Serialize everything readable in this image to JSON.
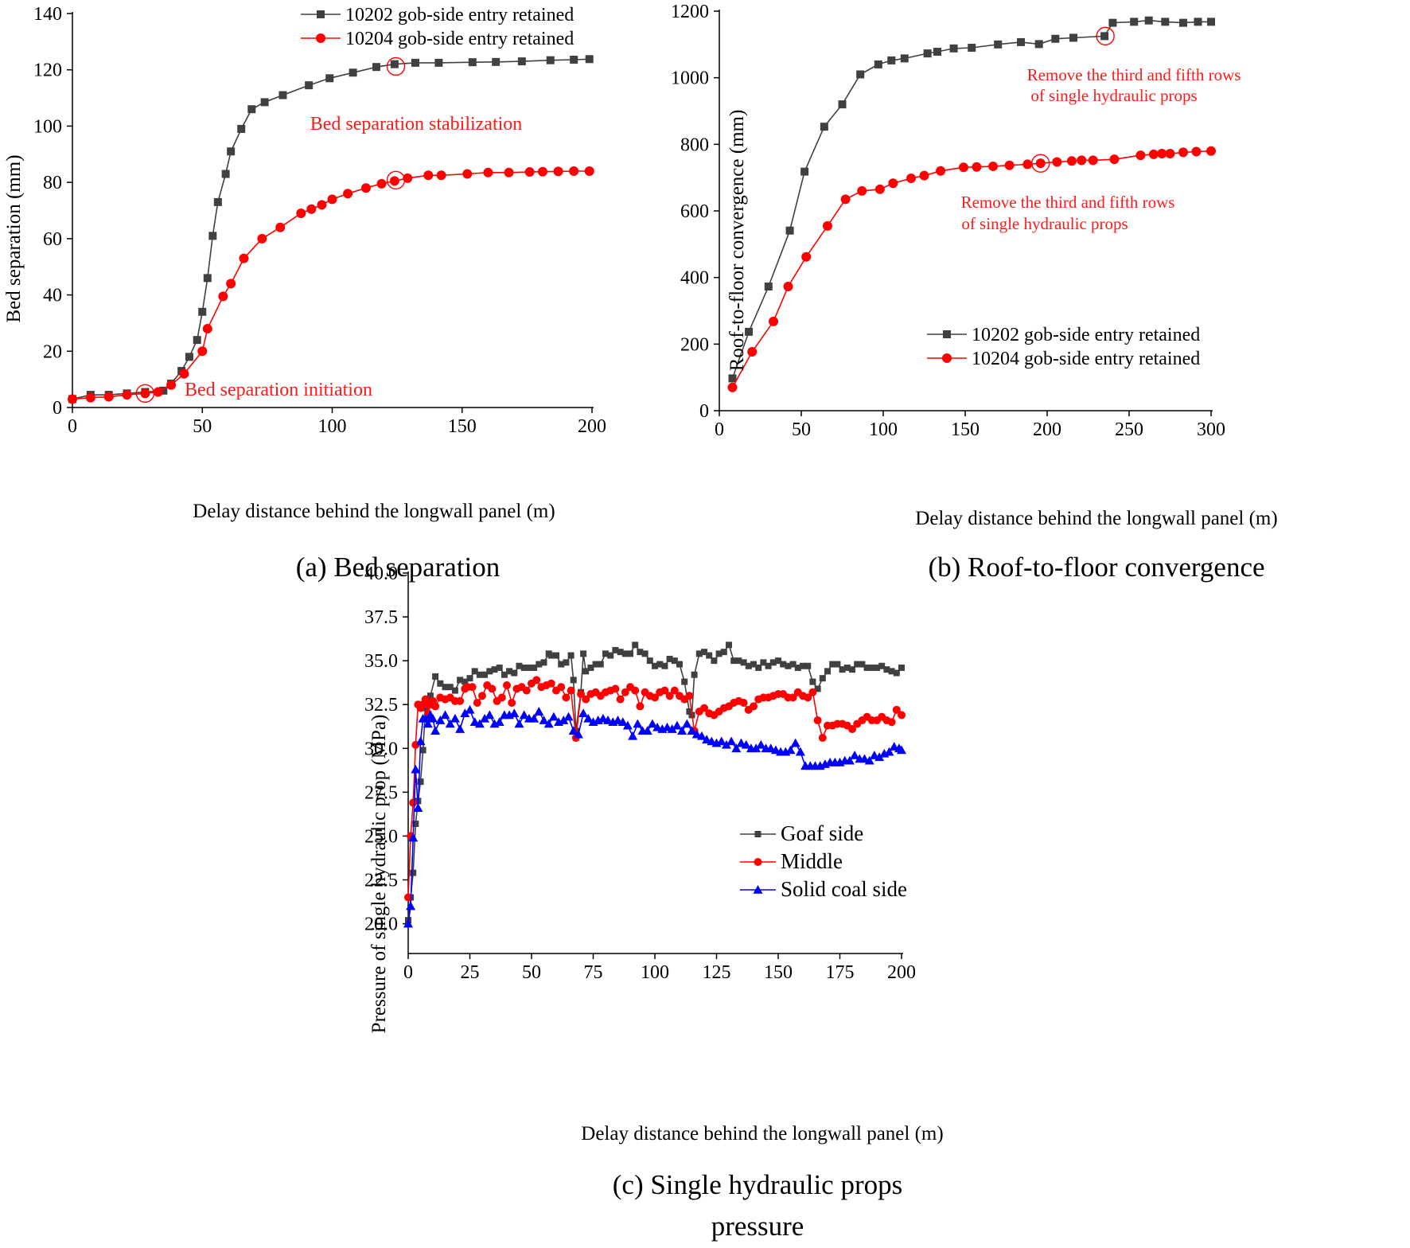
{
  "colors": {
    "black": "#000000",
    "gray": "#404040",
    "red": "#ff0000",
    "annotation": "#ff1a1a",
    "blue": "#0000ff"
  },
  "chart_data": [
    {
      "id": "a",
      "type": "line",
      "caption": "(a) Bed separation",
      "xlabel": "Delay distance behind the longwall panel (m)",
      "ylabel": "Bed separation (mm)",
      "xlim": [
        0,
        200
      ],
      "ylim": [
        0,
        140
      ],
      "xticks": [
        0,
        50,
        100,
        150,
        200
      ],
      "yticks": [
        0,
        20,
        40,
        60,
        80,
        100,
        120,
        140
      ],
      "legend_position": "top-right",
      "series": [
        {
          "name": "10202 gob-side entry retained",
          "color": "#404040",
          "marker": "square",
          "x": [
            0,
            7,
            14,
            21,
            28,
            35,
            38,
            42,
            45,
            48,
            50,
            52,
            54,
            56,
            59,
            61,
            65,
            69,
            74,
            81,
            91,
            99,
            108,
            117,
            124,
            132,
            141,
            154,
            163,
            173,
            184,
            193,
            199
          ],
          "y": [
            3,
            4.5,
            4.5,
            5,
            5.5,
            6,
            8.5,
            13,
            18,
            24,
            34,
            46,
            61,
            73,
            83,
            91,
            99,
            106,
            108.5,
            111,
            114.5,
            117,
            119,
            121,
            122,
            122.5,
            122.5,
            122.7,
            122.8,
            123,
            123.4,
            123.6,
            123.8
          ]
        },
        {
          "name": "10204 gob-side entry retained",
          "color": "#ff0000",
          "marker": "circle",
          "x": [
            0,
            7,
            14,
            21,
            28,
            33,
            38,
            43,
            50,
            52,
            58,
            61,
            66,
            73,
            80,
            88,
            92,
            96,
            100,
            106,
            113,
            119,
            124,
            129,
            137,
            142,
            152,
            160,
            168,
            176,
            181,
            187,
            193,
            199
          ],
          "y": [
            3,
            3.5,
            3.8,
            4.5,
            5,
            5.5,
            8,
            12,
            20,
            28,
            39.5,
            44,
            53,
            60,
            64,
            69,
            70.5,
            72,
            74,
            76,
            78,
            79.5,
            80.5,
            81.5,
            82.5,
            82.5,
            83,
            83.5,
            83.5,
            83.7,
            83.8,
            83.9,
            84,
            84
          ]
        }
      ],
      "annotations": [
        {
          "text": "Bed separation stabilization",
          "x": 125,
          "y": 100
        },
        {
          "text": "Bed separation initiation",
          "x": 30,
          "y": 4.5
        }
      ],
      "highlight_circles": [
        {
          "x": 124.5,
          "y": 121.2
        },
        {
          "x": 124.5,
          "y": 80.8
        },
        {
          "x": 28,
          "y": 5
        }
      ]
    },
    {
      "id": "b",
      "type": "line",
      "caption": "(b) Roof-to-floor convergence",
      "xlabel": "Delay distance behind the longwall panel (m)",
      "ylabel": "Roof-to-floor convergence (mm)",
      "xlim": [
        0,
        300
      ],
      "ylim": [
        0,
        1200
      ],
      "xticks": [
        0,
        50,
        100,
        150,
        200,
        250,
        300
      ],
      "yticks": [
        0,
        200,
        400,
        600,
        800,
        1000,
        1200
      ],
      "legend_position": "lower-right",
      "series": [
        {
          "name": "10202 gob-side entry retained",
          "color": "#404040",
          "marker": "square",
          "x": [
            8,
            18,
            30,
            43,
            52,
            64,
            75,
            86,
            97,
            105,
            113,
            127,
            133,
            143,
            154,
            170,
            184,
            195,
            205,
            216,
            235,
            240,
            253,
            262,
            272,
            283,
            292,
            300
          ],
          "y": [
            97,
            237,
            373,
            541,
            718,
            853,
            920,
            1010,
            1040,
            1052,
            1058,
            1073,
            1078,
            1088,
            1090,
            1100,
            1107,
            1101,
            1117,
            1120,
            1125,
            1165,
            1168,
            1172,
            1168,
            1165,
            1168,
            1168
          ]
        },
        {
          "name": "10204 gob-side entry retained",
          "color": "#ff0000",
          "marker": "circle",
          "x": [
            8,
            20,
            33,
            42,
            53,
            66,
            77,
            87,
            98,
            106,
            117,
            125,
            135,
            149,
            157,
            167,
            177,
            188,
            196,
            206,
            215,
            221,
            228,
            241,
            257,
            265,
            270,
            275,
            283,
            291,
            300
          ],
          "y": [
            70,
            177,
            268,
            373,
            462,
            555,
            635,
            660,
            665,
            683,
            698,
            706,
            720,
            731,
            732,
            734,
            737,
            740,
            743,
            747,
            750,
            752,
            752,
            755,
            767,
            770,
            772,
            772,
            776,
            778,
            780
          ]
        }
      ],
      "annotations": [
        {
          "text": "Remove the third and fifth rows",
          "x": 236,
          "y": 1013,
          "color": "#ff0000"
        },
        {
          "text": "of single hydraulic props",
          "x": 236,
          "y": 1013,
          "color": "#ff0000"
        },
        {
          "text": "Remove the third and fifth rows",
          "x": 196,
          "y": 743,
          "color": "#ff0000"
        },
        {
          "text": "of single hydraulic props",
          "x": 196,
          "y": 743,
          "color": "#ff0000"
        }
      ],
      "highlight_circles": [
        {
          "x": 235.5,
          "y": 1125
        },
        {
          "x": 196,
          "y": 743
        }
      ]
    },
    {
      "id": "c",
      "type": "line",
      "caption": "(c) Single hydraulic props",
      "caption_line2": "pressure",
      "xlabel": "Delay distance behind the longwall panel (m)",
      "ylabel": "Pressure of single hydraulic prop (MPa)",
      "xlim": [
        0,
        200
      ],
      "ylim": [
        18.3,
        40.0
      ],
      "xticks": [
        0,
        25,
        50,
        75,
        100,
        125,
        150,
        175,
        200
      ],
      "yticks": [
        20.0,
        22.5,
        25.0,
        27.5,
        30.0,
        32.5,
        35.0,
        37.5,
        40.0
      ],
      "legend_position": "lower-right",
      "series": [
        {
          "name": "Goaf side",
          "color": "#404040",
          "marker": "square",
          "x": [
            0,
            1,
            2,
            3,
            4,
            5,
            6,
            7,
            9,
            11,
            13,
            15,
            17,
            19,
            21,
            23,
            25,
            27,
            29,
            31,
            33,
            35,
            37,
            39,
            41,
            43,
            45,
            47,
            49,
            51,
            53,
            55,
            57,
            58,
            60,
            62,
            64,
            66,
            67,
            68,
            70,
            71,
            72,
            74,
            76,
            78,
            80,
            82,
            84,
            86,
            88,
            90,
            92,
            94,
            96,
            98,
            100,
            102,
            104,
            106,
            108,
            110,
            112,
            114,
            115,
            116,
            118,
            120,
            122,
            124,
            126,
            128,
            130,
            132,
            134,
            136,
            138,
            140,
            142,
            144,
            146,
            148,
            150,
            152,
            154,
            156,
            158,
            160,
            162,
            164,
            166,
            168,
            170,
            172,
            174,
            176,
            178,
            180,
            182,
            184,
            186,
            188,
            190,
            192,
            194,
            196,
            198,
            200
          ],
          "y": [
            20.2,
            21.5,
            22.9,
            25.7,
            27.0,
            28.1,
            29.9,
            32.3,
            33.0,
            34.1,
            33.7,
            33.5,
            33.5,
            33.3,
            33.9,
            33.8,
            34.0,
            34.4,
            34.2,
            34.2,
            34.4,
            34.5,
            34.6,
            34.2,
            34.4,
            34.3,
            34.7,
            34.6,
            34.6,
            34.6,
            34.8,
            34.9,
            35.4,
            35.3,
            35.3,
            34.8,
            34.9,
            35.3,
            33.9,
            31.0,
            33.2,
            35.4,
            34.4,
            34.6,
            34.8,
            34.8,
            35.4,
            35.3,
            35.6,
            35.5,
            35.4,
            35.4,
            35.9,
            35.5,
            35.4,
            35.0,
            34.7,
            34.8,
            34.7,
            35.1,
            35.0,
            34.8,
            33.8,
            32.1,
            31.9,
            34.2,
            35.4,
            35.5,
            35.3,
            35.0,
            35.4,
            35.5,
            35.9,
            35.0,
            35.0,
            34.9,
            34.7,
            34.8,
            34.6,
            34.9,
            34.7,
            34.9,
            35.0,
            34.8,
            34.7,
            34.8,
            34.6,
            34.7,
            34.7,
            33.8,
            33.4,
            34.0,
            34.4,
            34.8,
            34.8,
            34.5,
            34.6,
            34.5,
            34.8,
            34.8,
            34.6,
            34.6,
            34.6,
            34.7,
            34.5,
            34.4,
            34.3,
            34.6
          ]
        },
        {
          "name": "Middle",
          "color": "#ff0000",
          "marker": "circle",
          "x": [
            0,
            1,
            2,
            3,
            4,
            5,
            6,
            7,
            8,
            9,
            10,
            11,
            13,
            15,
            17,
            19,
            21,
            23,
            24,
            26,
            28,
            30,
            32,
            34,
            36,
            38,
            40,
            42,
            44,
            46,
            48,
            50,
            52,
            54,
            56,
            58,
            60,
            62,
            64,
            66,
            68,
            70,
            72,
            74,
            76,
            78,
            80,
            82,
            84,
            86,
            88,
            90,
            92,
            94,
            96,
            98,
            100,
            102,
            104,
            106,
            108,
            110,
            112,
            114,
            116,
            118,
            120,
            122,
            124,
            126,
            128,
            130,
            132,
            134,
            136,
            138,
            140,
            142,
            144,
            146,
            148,
            150,
            152,
            154,
            156,
            158,
            160,
            162,
            164,
            166,
            168,
            170,
            172,
            174,
            176,
            178,
            180,
            182,
            184,
            186,
            188,
            190,
            192,
            194,
            196,
            198,
            200
          ],
          "y": [
            21.5,
            25.0,
            26.9,
            30.2,
            32.5,
            32.3,
            32.5,
            32.8,
            32.0,
            32.5,
            32.7,
            32.4,
            32.9,
            32.8,
            32.9,
            32.7,
            32.7,
            33.4,
            33.5,
            33.5,
            32.6,
            33.0,
            33.6,
            33.4,
            32.7,
            32.9,
            33.6,
            32.6,
            33.4,
            33.5,
            33.3,
            33.7,
            33.9,
            33.5,
            33.6,
            33.7,
            33.3,
            33.5,
            32.9,
            33.3,
            30.6,
            33.1,
            32.8,
            33.1,
            33.2,
            33.0,
            33.2,
            33.3,
            33.4,
            32.8,
            33.2,
            33.5,
            33.3,
            32.4,
            33.2,
            33.0,
            32.9,
            33.2,
            33.3,
            33.0,
            33.3,
            33.0,
            32.8,
            33.0,
            31.0,
            32.1,
            32.3,
            32.0,
            31.9,
            32.1,
            32.3,
            32.4,
            32.6,
            32.7,
            32.6,
            32.2,
            32.4,
            32.8,
            32.9,
            32.9,
            33.0,
            33.1,
            33.1,
            32.9,
            32.9,
            33.2,
            33.0,
            32.9,
            33.2,
            31.6,
            30.6,
            31.3,
            31.3,
            31.4,
            31.4,
            31.3,
            31.1,
            31.4,
            31.6,
            31.8,
            31.6,
            31.6,
            31.8,
            31.6,
            31.5,
            32.2,
            31.9
          ]
        },
        {
          "name": "Solid coal side",
          "color": "#0000ff",
          "marker": "triangle",
          "x": [
            0,
            1,
            2,
            3,
            4,
            5,
            6,
            7,
            8,
            9,
            10,
            11,
            13,
            15,
            17,
            19,
            21,
            23,
            25,
            27,
            29,
            31,
            33,
            35,
            37,
            39,
            41,
            43,
            45,
            47,
            49,
            51,
            53,
            55,
            57,
            59,
            61,
            63,
            65,
            67,
            69,
            71,
            73,
            75,
            77,
            79,
            81,
            83,
            85,
            87,
            89,
            91,
            93,
            95,
            97,
            99,
            101,
            103,
            105,
            107,
            109,
            111,
            113,
            115,
            117,
            119,
            121,
            123,
            125,
            127,
            129,
            131,
            133,
            135,
            137,
            139,
            141,
            143,
            145,
            147,
            149,
            151,
            153,
            155,
            157,
            159,
            161,
            163,
            165,
            167,
            169,
            171,
            173,
            175,
            177,
            179,
            181,
            183,
            185,
            187,
            189,
            191,
            193,
            195,
            197,
            199,
            200
          ],
          "y": [
            20.0,
            21.0,
            24.9,
            28.8,
            26.6,
            30.4,
            31.7,
            31.7,
            31.4,
            31.9,
            31.7,
            31.0,
            31.6,
            31.9,
            31.4,
            31.7,
            31.1,
            32.0,
            32.2,
            31.5,
            31.4,
            31.7,
            31.9,
            31.4,
            31.5,
            31.9,
            31.9,
            32.0,
            31.4,
            31.9,
            31.7,
            31.7,
            32.1,
            31.6,
            31.4,
            31.8,
            31.5,
            31.6,
            31.8,
            31.0,
            30.8,
            32.0,
            31.7,
            31.5,
            31.6,
            31.7,
            31.6,
            31.5,
            31.6,
            31.5,
            31.3,
            30.7,
            31.4,
            31.0,
            31.0,
            31.4,
            31.2,
            31.1,
            31.2,
            31.1,
            31.3,
            31.0,
            31.4,
            31.0,
            30.8,
            30.7,
            30.5,
            30.4,
            30.3,
            30.4,
            30.2,
            30.4,
            30.0,
            30.3,
            30.2,
            30.0,
            30.0,
            30.2,
            30.0,
            30.0,
            29.9,
            29.8,
            29.8,
            29.9,
            30.3,
            29.8,
            29.0,
            29.0,
            29.0,
            29.0,
            29.1,
            29.2,
            29.2,
            29.2,
            29.3,
            29.3,
            29.6,
            29.4,
            29.4,
            29.3,
            29.6,
            29.5,
            29.7,
            29.8,
            30.1,
            30.0,
            29.9
          ]
        }
      ],
      "annotations": [],
      "highlight_circles": []
    }
  ]
}
